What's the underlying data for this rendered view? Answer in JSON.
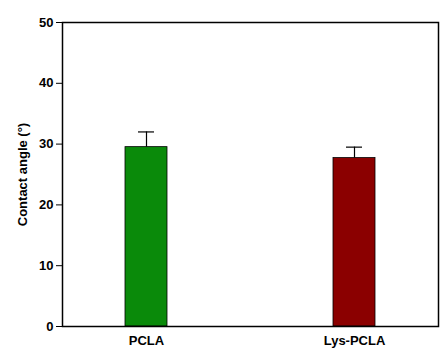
{
  "chart_data": {
    "type": "bar",
    "categories": [
      "PCLA",
      "Lys-PCLA"
    ],
    "values": [
      29.5,
      27.7
    ],
    "errors": [
      2.5,
      1.8
    ],
    "colors": [
      "#0a8a0a",
      "#8b0000"
    ],
    "ylabel": "Contact angle (°)",
    "ylim": [
      0,
      50
    ],
    "yticks": [
      0,
      10,
      20,
      30,
      40,
      50
    ]
  }
}
